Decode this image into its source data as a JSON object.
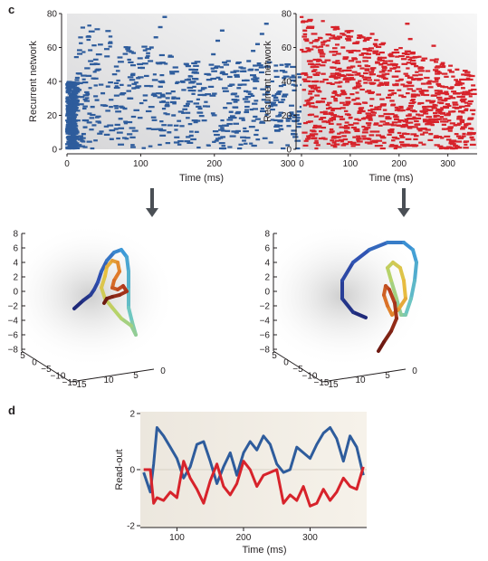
{
  "panels": {
    "c": "c",
    "d": "d"
  },
  "colors": {
    "blue": "#2e5c9c",
    "red": "#d7232b",
    "arrow": "#4a4f55"
  },
  "chart_data": [
    {
      "type": "scatter",
      "style": "raster",
      "xlabel": "Time (ms)",
      "ylabel": "Recurrent network",
      "xlim": [
        0,
        360
      ],
      "ylim": [
        0,
        80
      ],
      "xticks": [
        0,
        100,
        200,
        300
      ],
      "yticks": [
        0,
        20,
        40,
        60,
        80
      ],
      "color": "blue",
      "series": [
        {
          "x": [
            0,
            2,
            4,
            6,
            8,
            10,
            12,
            14,
            16,
            18,
            20,
            22,
            24,
            26,
            30,
            34,
            40,
            48,
            55,
            60,
            66,
            72,
            78,
            84,
            90,
            96,
            102,
            108,
            114,
            120,
            126,
            132,
            138,
            144,
            150,
            156,
            162,
            168,
            174,
            180,
            186,
            192,
            198,
            204,
            210,
            216,
            222,
            228,
            234,
            240,
            246,
            252,
            258,
            264,
            270,
            276,
            282,
            288,
            294,
            300,
            306,
            312,
            318,
            324,
            330,
            336,
            342,
            348
          ],
          "y": [
            3,
            7,
            11,
            15,
            19,
            23,
            27,
            31,
            35,
            39,
            5,
            9,
            13,
            17,
            21,
            25,
            29,
            33,
            37,
            6,
            12,
            18,
            24,
            30,
            36,
            42,
            48,
            54,
            60,
            66,
            72,
            78,
            10,
            20,
            30,
            40,
            50,
            8,
            16,
            24,
            32,
            44,
            56,
            64,
            70,
            14,
            22,
            28,
            38,
            46,
            52,
            58,
            62,
            68,
            74,
            4,
            26,
            34,
            42,
            50,
            9,
            17,
            25,
            33,
            41,
            49,
            57,
            65
          ]
        }
      ]
    },
    {
      "type": "scatter",
      "style": "raster",
      "xlabel": "Time (ms)",
      "ylabel": "Recurrent network",
      "xlim": [
        0,
        360
      ],
      "ylim": [
        0,
        80
      ],
      "xticks": [
        0,
        100,
        200,
        300
      ],
      "yticks": [
        0,
        20,
        40,
        60,
        80
      ],
      "color": "red",
      "series": [
        {
          "x": [
            2,
            6,
            10,
            14,
            18,
            24,
            30,
            36,
            42,
            48,
            54,
            60,
            66,
            72,
            78,
            84,
            90,
            96,
            102,
            108,
            114,
            120,
            126,
            132,
            138,
            144,
            150,
            156,
            162,
            168,
            174,
            180,
            186,
            192,
            198,
            204,
            210,
            216,
            222,
            228,
            234,
            240,
            246,
            252,
            258,
            264,
            270,
            276,
            282,
            288,
            294,
            300,
            306,
            312,
            318,
            324,
            330,
            336,
            342,
            348
          ],
          "y": [
            75,
            70,
            64,
            58,
            52,
            46,
            40,
            34,
            28,
            22,
            16,
            10,
            4,
            72,
            66,
            60,
            54,
            48,
            42,
            36,
            30,
            24,
            18,
            12,
            6,
            68,
            62,
            56,
            50,
            44,
            38,
            32,
            26,
            20,
            14,
            8,
            2,
            74,
            65,
            57,
            49,
            41,
            33,
            25,
            17,
            9,
            61,
            53,
            45,
            37,
            29,
            21,
            13,
            5,
            47,
            39,
            31,
            23,
            15,
            7
          ]
        }
      ]
    },
    {
      "type": "line",
      "style": "3d-trajectory",
      "ztick_labels": [
        "8",
        "6",
        "4",
        "2",
        "0",
        "−2",
        "−4",
        "−6",
        "−8"
      ],
      "xtick_labels": [
        "5",
        "0",
        "−5",
        "−10",
        "−15"
      ],
      "ytick_labels": [
        "15",
        "10",
        "5",
        "0"
      ],
      "colormap": [
        "#1f2a7a",
        "#2f4fb0",
        "#3d9ad8",
        "#6fc7c0",
        "#b6d36a",
        "#e8c040",
        "#e07a2a",
        "#b33a1c",
        "#6e1a12"
      ]
    },
    {
      "type": "line",
      "style": "3d-trajectory",
      "ztick_labels": [
        "8",
        "6",
        "4",
        "2",
        "0",
        "−2",
        "−4",
        "−6",
        "−8"
      ],
      "xtick_labels": [
        "5",
        "0",
        "−5",
        "−10",
        "−15"
      ],
      "ytick_labels": [
        "15",
        "10",
        "5",
        "0"
      ],
      "colormap": [
        "#1f2a7a",
        "#2f4fb0",
        "#3d9ad8",
        "#6fc7c0",
        "#b6d36a",
        "#e8c040",
        "#e07a2a",
        "#b33a1c",
        "#6e1a12"
      ]
    },
    {
      "type": "line",
      "xlabel": "Time (ms)",
      "ylabel": "Read-out",
      "xlim": [
        45,
        385
      ],
      "ylim": [
        -2,
        2
      ],
      "xticks": [
        100,
        200,
        300
      ],
      "yticks": [
        -2,
        0,
        2
      ],
      "series": [
        {
          "color": "blue",
          "x": [
            50,
            60,
            65,
            70,
            80,
            90,
            100,
            110,
            120,
            130,
            140,
            150,
            160,
            170,
            180,
            190,
            200,
            210,
            220,
            230,
            240,
            250,
            260,
            270,
            280,
            290,
            300,
            310,
            320,
            330,
            340,
            350,
            360,
            370,
            380
          ],
          "y": [
            -0.1,
            -0.8,
            0.2,
            1.5,
            1.2,
            0.8,
            0.4,
            -0.3,
            0.1,
            0.9,
            1.0,
            0.3,
            -0.5,
            0.1,
            0.6,
            -0.2,
            0.6,
            1.0,
            0.7,
            1.2,
            0.9,
            0.2,
            -0.1,
            0.0,
            0.8,
            0.6,
            0.4,
            0.9,
            1.3,
            1.5,
            1.1,
            0.3,
            1.2,
            0.8,
            -0.2
          ]
        },
        {
          "color": "red",
          "x": [
            50,
            60,
            65,
            70,
            80,
            90,
            100,
            110,
            120,
            130,
            140,
            150,
            160,
            170,
            180,
            190,
            200,
            210,
            220,
            230,
            240,
            250,
            260,
            270,
            280,
            290,
            300,
            310,
            320,
            330,
            340,
            350,
            360,
            370,
            380
          ],
          "y": [
            0.0,
            0.0,
            -1.2,
            -1.0,
            -1.1,
            -0.8,
            -1.0,
            0.3,
            -0.3,
            -0.7,
            -1.2,
            -0.4,
            0.2,
            -0.6,
            -0.9,
            -0.5,
            0.3,
            0.0,
            -0.6,
            -0.2,
            -0.1,
            0.0,
            -1.2,
            -0.9,
            -1.1,
            -0.6,
            -1.3,
            -1.2,
            -0.7,
            -1.1,
            -0.8,
            -0.3,
            -0.6,
            -0.7,
            0.1
          ]
        }
      ]
    }
  ]
}
